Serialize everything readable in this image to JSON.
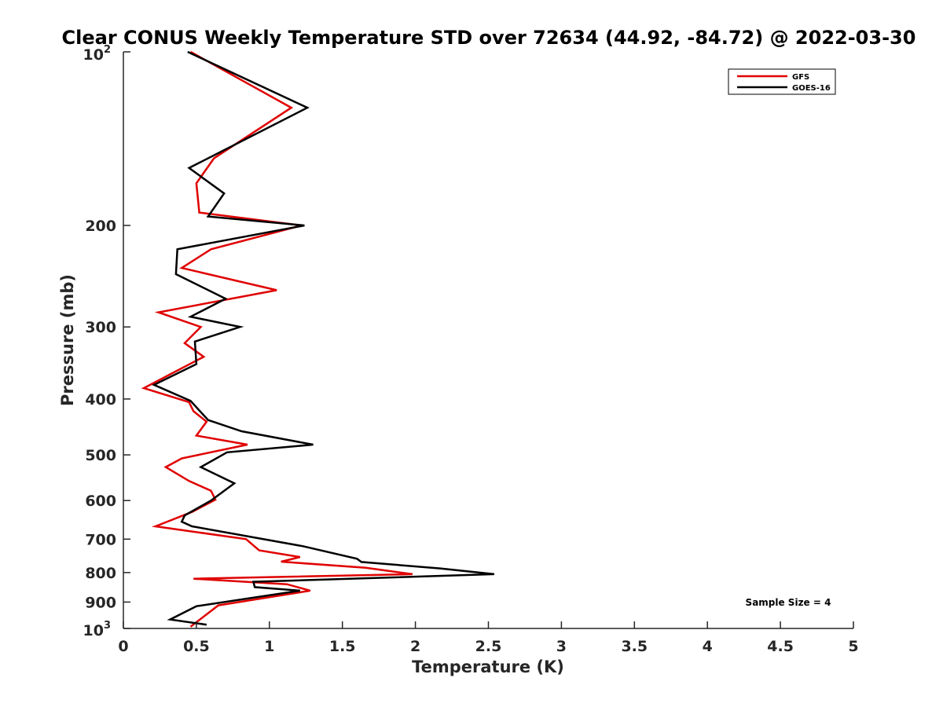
{
  "chart_data": {
    "type": "line",
    "title": "Clear CONUS Weekly Temperature STD over 72634 (44.92, -84.72) @ 2022-03-30",
    "xlabel": "Temperature (K)",
    "ylabel": "Pressure (mb)",
    "xlim": [
      0,
      5
    ],
    "ylim": [
      100,
      1000
    ],
    "y_scale": "log",
    "y_reversed": true,
    "x_ticks": [
      0,
      0.5,
      1,
      1.5,
      2,
      2.5,
      3,
      3.5,
      4,
      4.5,
      5
    ],
    "x_tick_labels": [
      "0",
      "0.5",
      "1",
      "1.5",
      "2",
      "2.5",
      "3",
      "3.5",
      "4",
      "4.5",
      "5"
    ],
    "y_ticks": [
      200,
      300,
      400,
      500,
      600,
      700,
      800,
      900
    ],
    "y_tick_labels": [
      "200",
      "300",
      "400",
      "500",
      "600",
      "700",
      "800",
      "900"
    ],
    "y_top_label": {
      "base": "10",
      "exp": "2"
    },
    "y_bottom_label": {
      "base": "10",
      "exp": "3"
    },
    "legend_position": "top-right",
    "annotation": "Sample Size = 4",
    "series": [
      {
        "name": "GFS",
        "color": "#e00000",
        "points": [
          [
            0.46,
            100
          ],
          [
            1.15,
            125
          ],
          [
            0.62,
            153
          ],
          [
            0.5,
            169
          ],
          [
            0.52,
            190
          ],
          [
            1.22,
            200
          ],
          [
            0.6,
            220
          ],
          [
            0.4,
            237
          ],
          [
            1.05,
            259
          ],
          [
            0.24,
            283
          ],
          [
            0.53,
            300
          ],
          [
            0.42,
            320
          ],
          [
            0.55,
            338
          ],
          [
            0.36,
            358
          ],
          [
            0.14,
            383
          ],
          [
            0.45,
            405
          ],
          [
            0.48,
            420
          ],
          [
            0.57,
            438
          ],
          [
            0.5,
            463
          ],
          [
            0.85,
            480
          ],
          [
            0.4,
            507
          ],
          [
            0.29,
            525
          ],
          [
            0.45,
            555
          ],
          [
            0.6,
            577
          ],
          [
            0.63,
            598
          ],
          [
            0.47,
            628
          ],
          [
            0.22,
            665
          ],
          [
            0.84,
            700
          ],
          [
            0.93,
            732
          ],
          [
            1.21,
            752
          ],
          [
            1.08,
            766
          ],
          [
            1.66,
            785
          ],
          [
            1.98,
            805
          ],
          [
            0.48,
            820
          ],
          [
            1.12,
            838
          ],
          [
            1.28,
            860
          ],
          [
            0.65,
            912
          ],
          [
            0.46,
            993
          ]
        ]
      },
      {
        "name": "GOES-16",
        "color": "#000000",
        "points": [
          [
            0.44,
            100
          ],
          [
            1.26,
            125
          ],
          [
            0.45,
            159
          ],
          [
            0.69,
            176
          ],
          [
            0.58,
            193
          ],
          [
            1.24,
            200
          ],
          [
            0.37,
            220
          ],
          [
            0.36,
            243
          ],
          [
            0.7,
            268
          ],
          [
            0.46,
            288
          ],
          [
            0.8,
            300
          ],
          [
            0.49,
            318
          ],
          [
            0.5,
            348
          ],
          [
            0.21,
            378
          ],
          [
            0.46,
            403
          ],
          [
            0.58,
            435
          ],
          [
            0.81,
            455
          ],
          [
            1.3,
            480
          ],
          [
            0.71,
            495
          ],
          [
            0.53,
            525
          ],
          [
            0.76,
            560
          ],
          [
            0.6,
            600
          ],
          [
            0.42,
            637
          ],
          [
            0.4,
            653
          ],
          [
            0.47,
            665
          ],
          [
            1.23,
            720
          ],
          [
            1.6,
            757
          ],
          [
            1.63,
            767
          ],
          [
            2.17,
            787
          ],
          [
            2.54,
            805
          ],
          [
            0.89,
            830
          ],
          [
            0.9,
            848
          ],
          [
            1.21,
            860
          ],
          [
            0.5,
            915
          ],
          [
            0.32,
            965
          ],
          [
            0.57,
            985
          ]
        ]
      }
    ]
  }
}
